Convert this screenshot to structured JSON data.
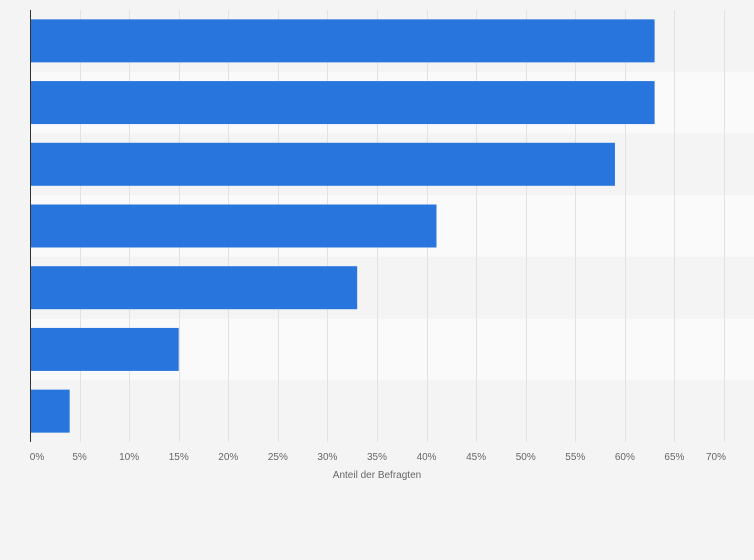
{
  "chart_data": {
    "type": "bar",
    "orientation": "horizontal",
    "categories": [
      "",
      "",
      "",
      "",
      "",
      "",
      ""
    ],
    "values": [
      63,
      63,
      59,
      41,
      33,
      15,
      4
    ],
    "xlabel": "Anteil der Befragten",
    "xlim": [
      0,
      70
    ],
    "xticks": [
      0,
      5,
      10,
      15,
      20,
      25,
      30,
      35,
      40,
      45,
      50,
      55,
      60,
      65,
      70
    ],
    "xtick_labels": [
      "0%",
      "5%",
      "10%",
      "15%",
      "20%",
      "25%",
      "30%",
      "35%",
      "40%",
      "45%",
      "50%",
      "55%",
      "60%",
      "65%",
      "70%"
    ],
    "grid": true,
    "bar_color": "#2876dd",
    "colors": {
      "band_light": "#fafafa",
      "band_dark": "#f4f4f4",
      "gridline": "#e2e2e2",
      "axis": "#333333"
    }
  }
}
